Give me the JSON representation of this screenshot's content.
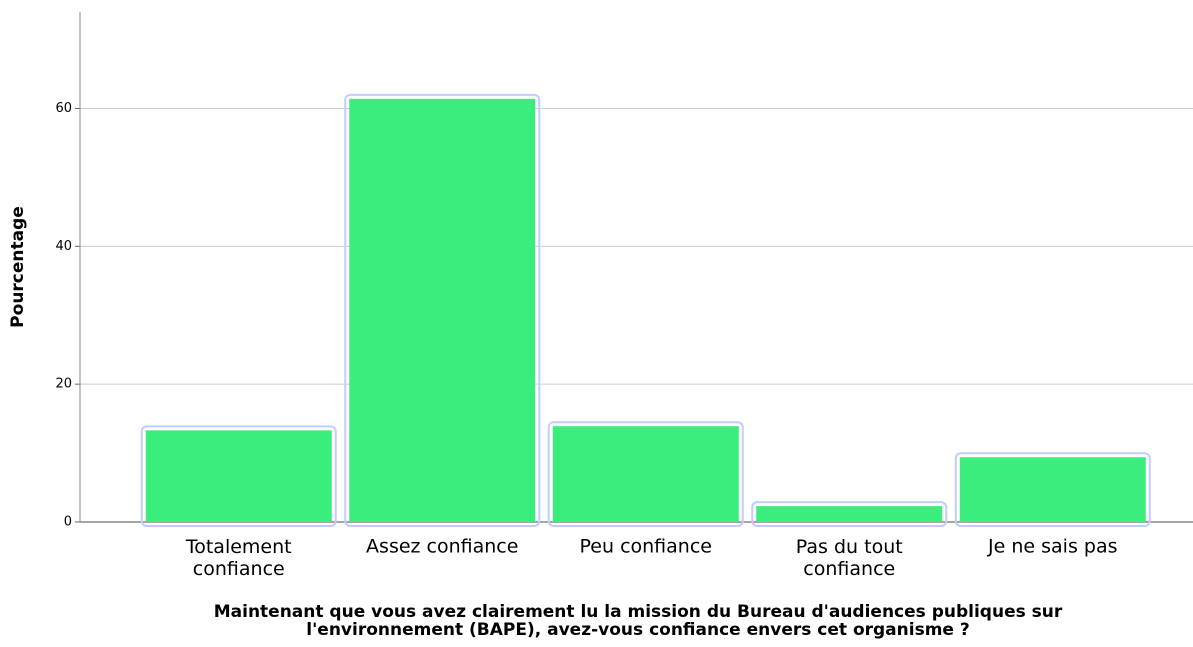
{
  "chart_data": {
    "type": "bar",
    "x_label": "Maintenant que vous avez clairement lu la mission du Bureau d'audiences publiques sur\nl'environnement (BAPE), avez-vous confiance envers cet organisme ?",
    "y_label": "Pourcentage",
    "categories": [
      "Totalement\nconfiance",
      "Assez confiance",
      "Peu confiance",
      "Pas du tout\nconfiance",
      "Je ne sais pas"
    ],
    "values": [
      13.3,
      61.4,
      13.9,
      2.3,
      9.4
    ],
    "color": "#3bed7d",
    "ylim": [
      0,
      74
    ],
    "yticks": [
      0,
      20,
      40,
      60
    ],
    "grid": true
  }
}
